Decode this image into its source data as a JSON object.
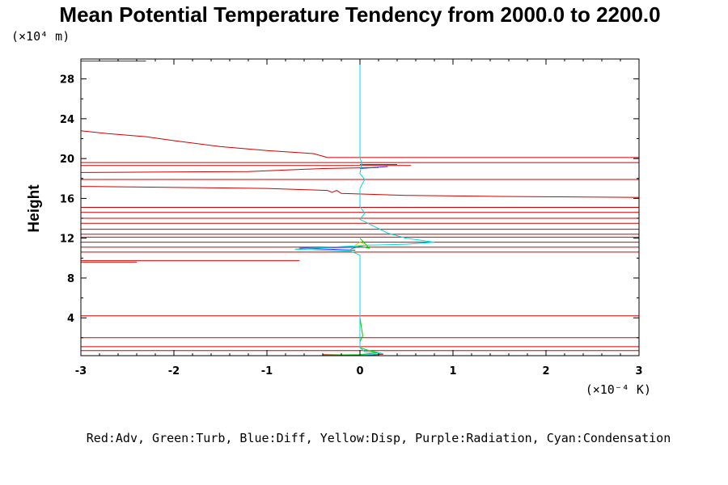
{
  "chart_data": {
    "type": "line",
    "title": "Mean Potential Temperature Tendency from 2000.0 to 2200.0",
    "ylabel": "Height",
    "x_unit_label": "(×10⁻⁴ K)",
    "y_unit_label": "(×10⁴ m)",
    "xlim": [
      -3,
      3
    ],
    "ylim": [
      0.2,
      30
    ],
    "x_ticks": [
      -3,
      -2,
      -1,
      0,
      1,
      2,
      3
    ],
    "y_ticks": [
      4,
      8,
      12,
      16,
      20,
      24,
      28
    ],
    "x_tick_labels": [
      "-3",
      "-2",
      "-1",
      "0",
      "1",
      "2",
      "3"
    ],
    "y_tick_labels": [
      "4",
      "8",
      "12",
      "16",
      "20",
      "24",
      "28"
    ],
    "legend_text": "Red:Adv, Green:Turb, Blue:Diff, Yellow:Disp, Purple:Radiation, Cyan:Condensation",
    "legend_position": "bottom",
    "grid": false,
    "colors": {
      "red": "#d40000",
      "green": "#00c800",
      "blue": "#3030ff",
      "yellow": "#e0d000",
      "purple": "#a000c8",
      "cyan": "#00d8d8"
    },
    "series": [
      {
        "name": "Adv",
        "color": "red",
        "segments": [
          [
            [
              -3,
              29.8
            ],
            [
              -2.3,
              29.8
            ]
          ],
          [
            [
              -3,
              22.8
            ],
            [
              -2.7,
              22.5
            ],
            [
              -2.3,
              22.2
            ],
            [
              -2.0,
              21.8
            ],
            [
              -1.5,
              21.2
            ],
            [
              -1.0,
              20.8
            ],
            [
              -0.5,
              20.5
            ],
            [
              -0.35,
              20.1
            ],
            [
              3,
              20.1
            ]
          ],
          [
            [
              -3,
              19.6
            ],
            [
              3,
              19.6
            ]
          ],
          [
            [
              -3,
              19.3
            ],
            [
              0.55,
              19.3
            ]
          ],
          [
            [
              -3,
              18.6
            ],
            [
              -1.2,
              18.7
            ],
            [
              -0.4,
              19.0
            ],
            [
              0.2,
              19.1
            ]
          ],
          [
            [
              -3,
              17.9
            ],
            [
              3,
              17.9
            ]
          ],
          [
            [
              -3,
              17.2
            ],
            [
              -1.0,
              17.0
            ],
            [
              -0.35,
              16.8
            ],
            [
              -0.3,
              16.6
            ],
            [
              -0.25,
              16.8
            ],
            [
              -0.2,
              16.5
            ],
            [
              0.5,
              16.3
            ],
            [
              1.5,
              16.2
            ],
            [
              3,
              16.1
            ]
          ],
          [
            [
              -3,
              15.1
            ],
            [
              3,
              15.1
            ]
          ],
          [
            [
              -3,
              14.6
            ],
            [
              3,
              14.6
            ]
          ],
          [
            [
              -3,
              14.0
            ],
            [
              3,
              14.0
            ]
          ],
          [
            [
              -3,
              13.5
            ],
            [
              3,
              13.5
            ]
          ],
          [
            [
              -3,
              12.9
            ],
            [
              3,
              12.9
            ]
          ],
          [
            [
              -3,
              12.4
            ],
            [
              3,
              12.4
            ]
          ],
          [
            [
              -3,
              12.1
            ],
            [
              3,
              12.1
            ]
          ],
          [
            [
              -3,
              11.6
            ],
            [
              3,
              11.6
            ]
          ],
          [
            [
              -3,
              11.1
            ],
            [
              3,
              11.1
            ]
          ],
          [
            [
              -3,
              10.6
            ],
            [
              3,
              10.6
            ]
          ],
          [
            [
              -3,
              9.75
            ],
            [
              -0.65,
              9.75
            ]
          ],
          [
            [
              -3,
              9.6
            ],
            [
              -2.4,
              9.6
            ]
          ],
          [
            [
              -3,
              4.2
            ],
            [
              3,
              4.2
            ]
          ],
          [
            [
              -3,
              2.0
            ],
            [
              3,
              2.0
            ]
          ],
          [
            [
              -3,
              1.1
            ],
            [
              3,
              1.1
            ]
          ],
          [
            [
              -3,
              0.7
            ],
            [
              3,
              0.7
            ]
          ],
          [
            [
              -0.4,
              0.3
            ],
            [
              0.1,
              0.25
            ],
            [
              0.25,
              0.35
            ]
          ]
        ]
      },
      {
        "name": "Turb",
        "color": "green",
        "segments": [
          [
            [
              -0.4,
              0.25
            ],
            [
              0.0,
              0.3
            ],
            [
              0.2,
              0.5
            ],
            [
              0.1,
              0.7
            ],
            [
              0.0,
              1.0
            ],
            [
              0.0,
              1.6
            ],
            [
              0.03,
              2.2
            ],
            [
              0.0,
              4.0
            ]
          ],
          [
            [
              -0.1,
              10.9
            ],
            [
              0.0,
              11.2
            ],
            [
              0.1,
              11.0
            ],
            [
              0.05,
              11.5
            ],
            [
              0.0,
              12.0
            ]
          ]
        ]
      },
      {
        "name": "Diff",
        "color": "blue",
        "segments": [
          [
            [
              -0.05,
              10.8
            ],
            [
              -0.65,
              11.0
            ],
            [
              0.0,
              11.1
            ]
          ],
          [
            [
              0.0,
              19.0
            ],
            [
              0.3,
              19.2
            ]
          ]
        ]
      },
      {
        "name": "Disp",
        "color": "yellow",
        "segments": [
          [
            [
              -0.05,
              11.3
            ],
            [
              0.0,
              11.6
            ],
            [
              0.05,
              11.4
            ]
          ]
        ]
      },
      {
        "name": "Radiation",
        "color": "purple",
        "segments": [
          [
            [
              0.0,
              19.4
            ],
            [
              0.4,
              19.4
            ]
          ]
        ]
      },
      {
        "name": "Condensation",
        "color": "cyan",
        "segments": [
          [
            [
              0.0,
              30
            ],
            [
              0.0,
              20.1
            ],
            [
              0.02,
              19.5
            ],
            [
              0.0,
              18.5
            ],
            [
              0.05,
              17.9
            ],
            [
              0.0,
              17.0
            ],
            [
              0.0,
              15.2
            ],
            [
              0.05,
              14.5
            ],
            [
              0.0,
              13.9
            ],
            [
              0.15,
              13.2
            ],
            [
              0.3,
              12.5
            ],
            [
              0.5,
              12.0
            ],
            [
              0.8,
              11.6
            ],
            [
              0.5,
              11.4
            ],
            [
              0.1,
              11.3
            ],
            [
              -0.7,
              10.9
            ],
            [
              -0.1,
              10.7
            ],
            [
              0.0,
              10.3
            ],
            [
              0.0,
              2.5
            ],
            [
              0.0,
              1.0
            ],
            [
              0.05,
              0.6
            ],
            [
              0.2,
              0.5
            ],
            [
              0.25,
              0.4
            ],
            [
              0.0,
              0.25
            ]
          ]
        ]
      }
    ]
  }
}
